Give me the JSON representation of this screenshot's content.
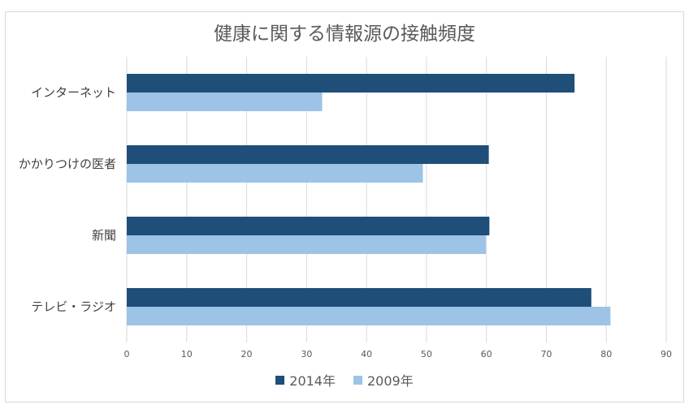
{
  "chart_data": {
    "type": "bar",
    "orientation": "horizontal",
    "title": "健康に関する情報源の接触頻度",
    "categories": [
      "インターネット",
      "かかりつけの医者",
      "新聞",
      "テレビ・ラジオ"
    ],
    "series": [
      {
        "name": "2014年",
        "color": "#1f4e79",
        "values": [
          74.7,
          60.4,
          60.5,
          77.5
        ]
      },
      {
        "name": "2009年",
        "color": "#9dc3e6",
        "values": [
          32.6,
          49.4,
          59.9,
          80.7
        ]
      }
    ],
    "xlim": [
      0,
      90
    ],
    "xticks": [
      0,
      10,
      20,
      30,
      40,
      50,
      60,
      70,
      80,
      90
    ],
    "grid": true,
    "legend": "bottom"
  }
}
